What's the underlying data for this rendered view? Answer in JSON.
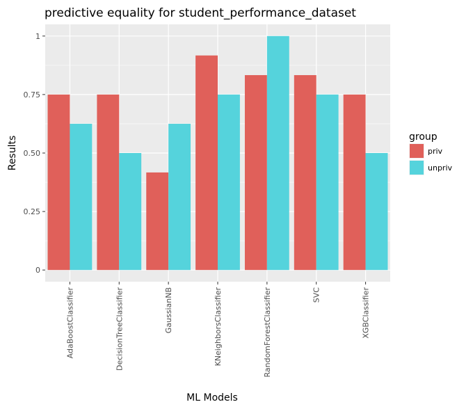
{
  "chart_data": {
    "type": "bar",
    "title": "predictive equality for student_performance_dataset",
    "xlabel": "ML Models",
    "ylabel": "Results",
    "categories": [
      "AdaBoostClassifier",
      "DecisionTreeClassifier",
      "GaussianNB",
      "KNeighborsClassifier",
      "RandomForestClassifier",
      "SVC",
      "XGBClassifier"
    ],
    "series": [
      {
        "name": "priv",
        "color": "#E0605A",
        "values": [
          0.75,
          0.75,
          0.417,
          0.917,
          0.833,
          0.833,
          0.75
        ]
      },
      {
        "name": "unpriv",
        "color": "#55D3DC",
        "values": [
          0.625,
          0.5,
          0.625,
          0.75,
          1.0,
          0.75,
          0.5
        ]
      }
    ],
    "yticks": [
      0,
      0.25,
      0.5,
      0.75,
      1
    ],
    "ytick_labels": [
      "0",
      "0.25",
      "0.50",
      "0.75",
      "1"
    ],
    "ylim": [
      -0.05,
      1.05
    ],
    "grid": true,
    "legend": {
      "title": "group",
      "position": "right"
    },
    "panel_color": "#EBEBEB"
  }
}
